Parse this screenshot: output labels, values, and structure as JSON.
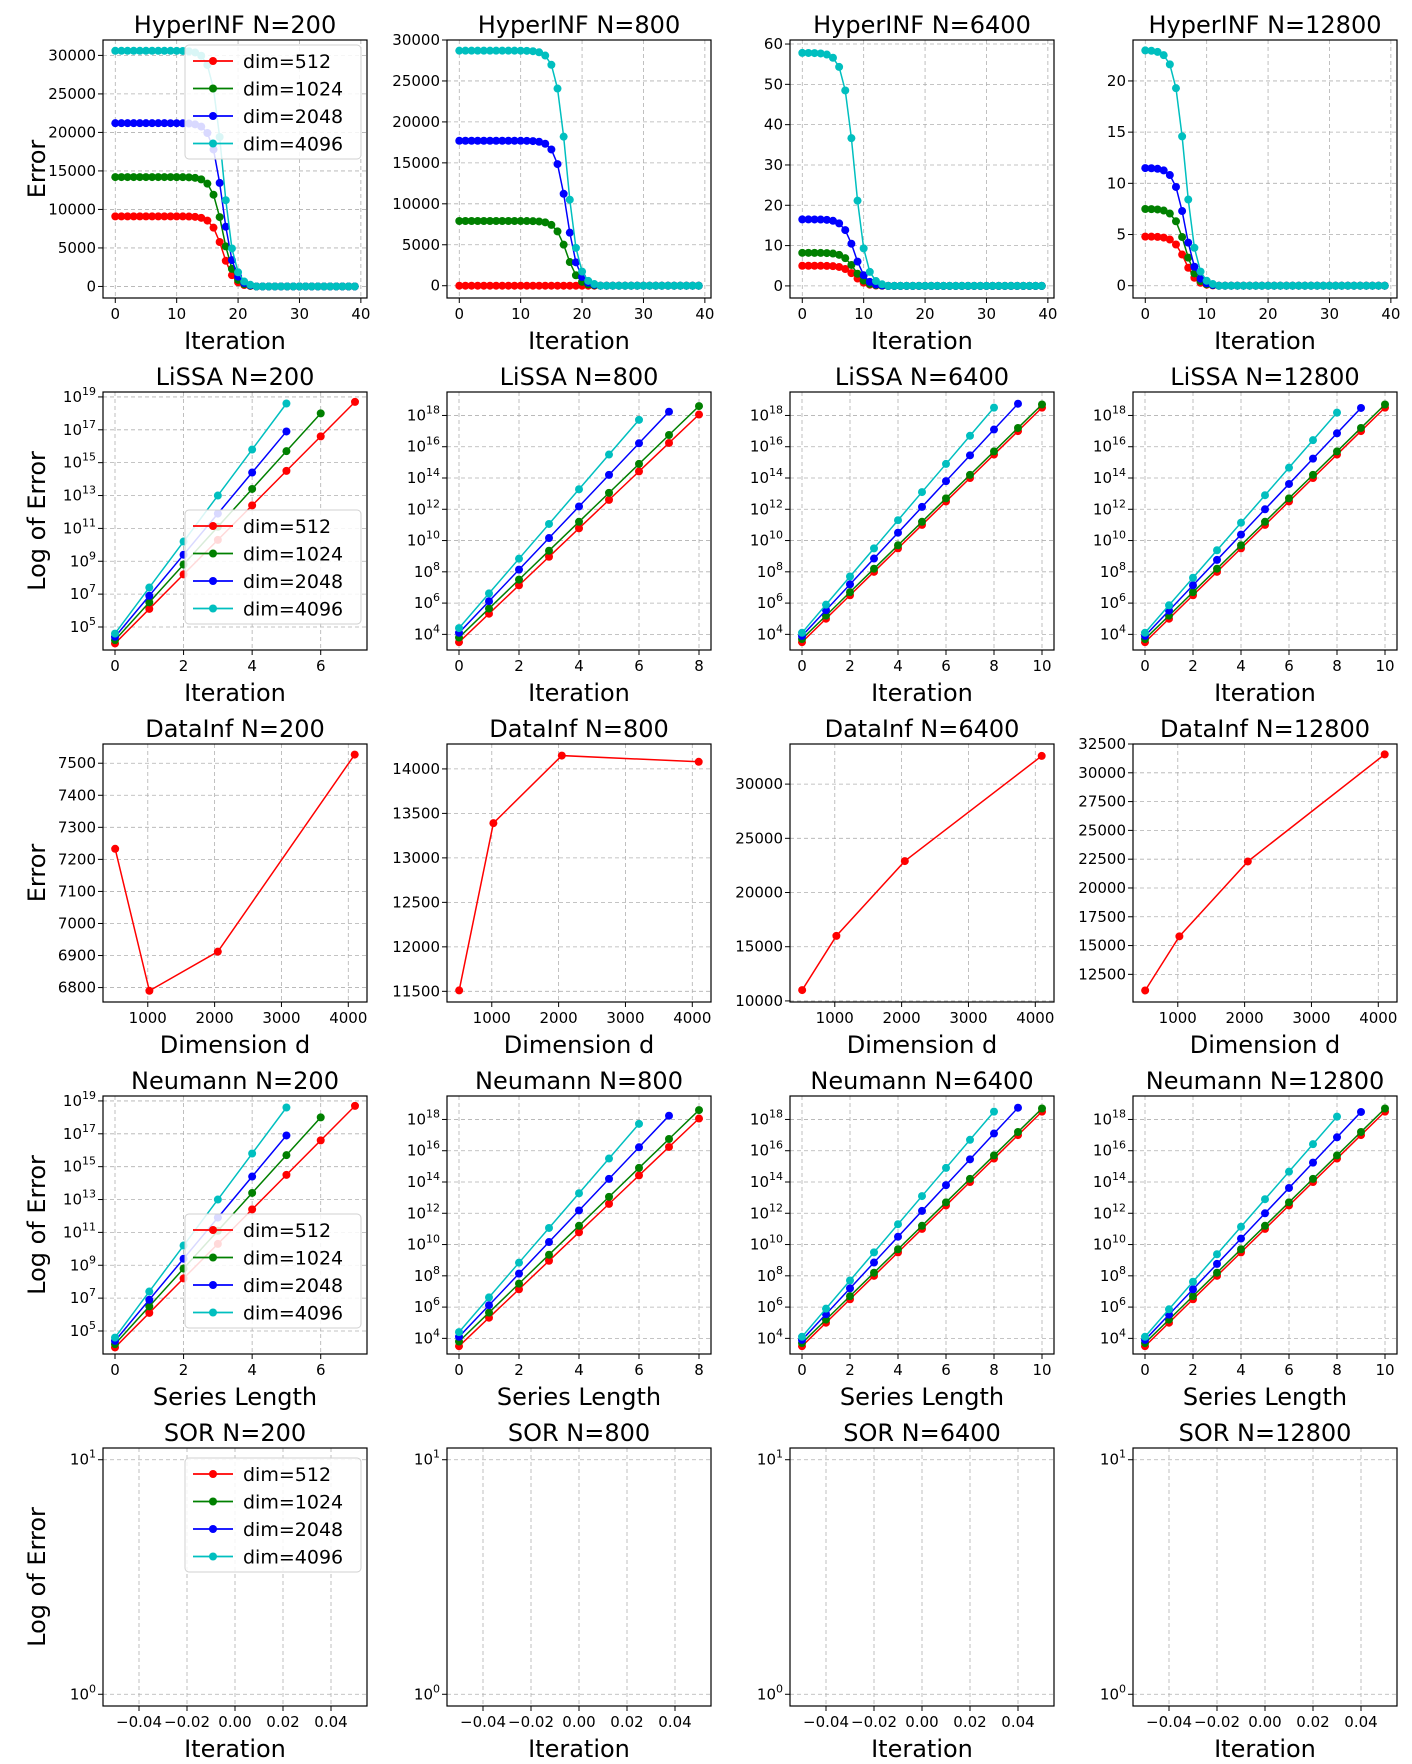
{
  "figure": {
    "legend_entries": [
      "dim=512",
      "dim=1024",
      "dim=2048",
      "dim=4096"
    ],
    "series_colors": {
      "dim=512": "#ff0000",
      "dim=1024": "#008000",
      "dim=2048": "#0000ff",
      "dim=4096": "#00bfbf"
    }
  },
  "chart_data": [
    {
      "type": "line",
      "title": "HyperINF N=200",
      "xlabel": "Iteration",
      "ylabel": "Error",
      "scale": "linear",
      "xlim": [
        -2,
        41
      ],
      "ylim": [
        -1500,
        32000
      ],
      "xticks": [
        0,
        10,
        20,
        30,
        40
      ],
      "yticks": [
        0,
        5000,
        10000,
        15000,
        20000,
        25000,
        30000
      ],
      "legend": "top-right",
      "kind": "hyper",
      "n": 40,
      "drop": 20,
      "start": {
        "dim=512": 9100,
        "dim=1024": 14200,
        "dim=2048": 21200,
        "dim=4096": 30600
      }
    },
    {
      "type": "line",
      "title": "HyperINF N=800",
      "xlabel": "Iteration",
      "ylabel": "",
      "scale": "linear",
      "xlim": [
        -2,
        41
      ],
      "ylim": [
        -1500,
        30000
      ],
      "xticks": [
        0,
        10,
        20,
        30,
        40
      ],
      "yticks": [
        0,
        5000,
        10000,
        15000,
        20000,
        25000,
        30000
      ],
      "legend": null,
      "kind": "hyper",
      "n": 40,
      "drop": 20,
      "start": {
        "dim=512": 0,
        "dim=1024": 7900,
        "dim=2048": 17700,
        "dim=4096": 28700
      }
    },
    {
      "type": "line",
      "title": "HyperINF N=6400",
      "xlabel": "Iteration",
      "ylabel": "",
      "scale": "linear",
      "xlim": [
        -2,
        41
      ],
      "ylim": [
        -3,
        61
      ],
      "xticks": [
        0,
        10,
        20,
        30,
        40
      ],
      "yticks": [
        0,
        10,
        20,
        30,
        40,
        50,
        60
      ],
      "legend": null,
      "kind": "hyper",
      "n": 40,
      "drop": 11,
      "start": {
        "dim=512": 5,
        "dim=1024": 8.2,
        "dim=2048": 16.5,
        "dim=4096": 57.8
      }
    },
    {
      "type": "line",
      "title": "HyperINF N=12800",
      "xlabel": "Iteration",
      "ylabel": "",
      "scale": "linear",
      "xlim": [
        -2,
        41
      ],
      "ylim": [
        -1.2,
        24
      ],
      "xticks": [
        0,
        10,
        20,
        30,
        40
      ],
      "yticks": [
        0,
        5,
        10,
        15,
        20
      ],
      "legend": null,
      "kind": "hyper",
      "n": 40,
      "drop": 9,
      "start": {
        "dim=512": 4.8,
        "dim=1024": 7.5,
        "dim=2048": 11.5,
        "dim=4096": 23
      }
    },
    {
      "type": "line",
      "title": "LiSSA N=200",
      "xlabel": "Iteration",
      "ylabel": "Log of Error",
      "scale": "log",
      "xlim": [
        -0.35,
        7.35
      ],
      "ylim": [
        3.6,
        19.3
      ],
      "xticks": [
        0,
        2,
        4,
        6
      ],
      "yticks": [
        5,
        7,
        9,
        11,
        13,
        15,
        17,
        19
      ],
      "legend": "center-right",
      "kind": "loglin",
      "series": {
        "dim=512": {
          "n": 8,
          "a": 4.0,
          "b": 2.1
        },
        "dim=1024": {
          "n": 7,
          "a": 4.2,
          "b": 2.3
        },
        "dim=2048": {
          "n": 6,
          "a": 4.4,
          "b": 2.5
        },
        "dim=4096": {
          "n": 6,
          "a": 4.6,
          "b": 2.8
        }
      }
    },
    {
      "type": "line",
      "title": "LiSSA N=800",
      "xlabel": "Iteration",
      "ylabel": "",
      "scale": "log",
      "xlim": [
        -0.4,
        8.4
      ],
      "ylim": [
        3,
        19.5
      ],
      "xticks": [
        0,
        2,
        4,
        6,
        8
      ],
      "yticks": [
        4,
        6,
        8,
        10,
        12,
        14,
        16,
        18
      ],
      "legend": null,
      "kind": "loglin",
      "series": {
        "dim=512": {
          "n": 9,
          "a": 3.5,
          "b": 1.82
        },
        "dim=1024": {
          "n": 9,
          "a": 3.8,
          "b": 1.85
        },
        "dim=2048": {
          "n": 8,
          "a": 4.1,
          "b": 2.02
        },
        "dim=4096": {
          "n": 7,
          "a": 4.4,
          "b": 2.22
        }
      }
    },
    {
      "type": "line",
      "title": "LiSSA N=6400",
      "xlabel": "Iteration",
      "ylabel": "",
      "scale": "log",
      "xlim": [
        -0.5,
        10.5
      ],
      "ylim": [
        3,
        19.5
      ],
      "xticks": [
        0,
        2,
        4,
        6,
        8,
        10
      ],
      "yticks": [
        4,
        6,
        8,
        10,
        12,
        14,
        16,
        18
      ],
      "legend": null,
      "kind": "loglin",
      "series": {
        "dim=512": {
          "n": 11,
          "a": 3.5,
          "b": 1.5
        },
        "dim=1024": {
          "n": 11,
          "a": 3.7,
          "b": 1.5
        },
        "dim=2048": {
          "n": 10,
          "a": 3.9,
          "b": 1.65
        },
        "dim=4096": {
          "n": 9,
          "a": 4.1,
          "b": 1.8
        }
      }
    },
    {
      "type": "line",
      "title": "LiSSA N=12800",
      "xlabel": "Iteration",
      "ylabel": "",
      "scale": "log",
      "xlim": [
        -0.5,
        10.5
      ],
      "ylim": [
        3,
        19.5
      ],
      "xticks": [
        0,
        2,
        4,
        6,
        8,
        10
      ],
      "yticks": [
        4,
        6,
        8,
        10,
        12,
        14,
        16,
        18
      ],
      "legend": null,
      "kind": "loglin",
      "series": {
        "dim=512": {
          "n": 11,
          "a": 3.5,
          "b": 1.5
        },
        "dim=1024": {
          "n": 11,
          "a": 3.7,
          "b": 1.5
        },
        "dim=2048": {
          "n": 10,
          "a": 3.9,
          "b": 1.62
        },
        "dim=4096": {
          "n": 9,
          "a": 4.1,
          "b": 1.76
        }
      }
    },
    {
      "type": "line",
      "title": "DataInf N=200",
      "xlabel": "Dimension d",
      "ylabel": "Error",
      "scale": "linear",
      "xlim": [
        330,
        4280
      ],
      "ylim": [
        6755,
        7560
      ],
      "xticks": [
        1000,
        2000,
        3000,
        4000
      ],
      "yticks": [
        6800,
        6900,
        7000,
        7100,
        7200,
        7300,
        7400,
        7500
      ],
      "legend": null,
      "kind": "points",
      "x": [
        512,
        1024,
        2048,
        4096
      ],
      "values": [
        7233,
        6790,
        6912,
        7527
      ]
    },
    {
      "type": "line",
      "title": "DataInf N=800",
      "xlabel": "Dimension d",
      "ylabel": "",
      "scale": "linear",
      "xlim": [
        330,
        4280
      ],
      "ylim": [
        11380,
        14280
      ],
      "xticks": [
        1000,
        2000,
        3000,
        4000
      ],
      "yticks": [
        11500,
        12000,
        12500,
        13000,
        13500,
        14000
      ],
      "legend": null,
      "kind": "points",
      "x": [
        512,
        1024,
        2048,
        4096
      ],
      "values": [
        11510,
        13390,
        14150,
        14080
      ]
    },
    {
      "type": "line",
      "title": "DataInf N=6400",
      "xlabel": "Dimension d",
      "ylabel": "",
      "scale": "linear",
      "xlim": [
        330,
        4280
      ],
      "ylim": [
        9900,
        33700
      ],
      "xticks": [
        1000,
        2000,
        3000,
        4000
      ],
      "yticks": [
        10000,
        15000,
        20000,
        25000,
        30000
      ],
      "legend": null,
      "kind": "points",
      "x": [
        512,
        1024,
        2048,
        4096
      ],
      "values": [
        11000,
        16000,
        22900,
        32600
      ]
    },
    {
      "type": "line",
      "title": "DataInf N=12800",
      "xlabel": "Dimension d",
      "ylabel": "",
      "scale": "linear",
      "xlim": [
        330,
        4280
      ],
      "ylim": [
        10100,
        32500
      ],
      "xticks": [
        1000,
        2000,
        3000,
        4000
      ],
      "yticks": [
        12500,
        15000,
        17500,
        20000,
        22500,
        25000,
        27500,
        30000,
        32500
      ],
      "legend": null,
      "kind": "points",
      "x": [
        512,
        1024,
        2048,
        4096
      ],
      "values": [
        11100,
        15800,
        22300,
        31600
      ]
    },
    {
      "type": "line",
      "title": "Neumann N=200",
      "xlabel": "Series Length",
      "ylabel": "Log of Error",
      "scale": "log",
      "xlim": [
        -0.35,
        7.35
      ],
      "ylim": [
        3.6,
        19.3
      ],
      "xticks": [
        0,
        2,
        4,
        6
      ],
      "yticks": [
        5,
        7,
        9,
        11,
        13,
        15,
        17,
        19
      ],
      "legend": "center-right",
      "kind": "loglin",
      "series": {
        "dim=512": {
          "n": 8,
          "a": 4.0,
          "b": 2.1
        },
        "dim=1024": {
          "n": 7,
          "a": 4.2,
          "b": 2.3
        },
        "dim=2048": {
          "n": 6,
          "a": 4.4,
          "b": 2.5
        },
        "dim=4096": {
          "n": 6,
          "a": 4.6,
          "b": 2.8
        }
      }
    },
    {
      "type": "line",
      "title": "Neumann N=800",
      "xlabel": "Series Length",
      "ylabel": "",
      "scale": "log",
      "xlim": [
        -0.4,
        8.4
      ],
      "ylim": [
        3,
        19.5
      ],
      "xticks": [
        0,
        2,
        4,
        6,
        8
      ],
      "yticks": [
        4,
        6,
        8,
        10,
        12,
        14,
        16,
        18
      ],
      "legend": null,
      "kind": "loglin",
      "series": {
        "dim=512": {
          "n": 9,
          "a": 3.5,
          "b": 1.82
        },
        "dim=1024": {
          "n": 9,
          "a": 3.8,
          "b": 1.85
        },
        "dim=2048": {
          "n": 8,
          "a": 4.1,
          "b": 2.02
        },
        "dim=4096": {
          "n": 7,
          "a": 4.4,
          "b": 2.22
        }
      }
    },
    {
      "type": "line",
      "title": "Neumann N=6400",
      "xlabel": "Series Length",
      "ylabel": "",
      "scale": "log",
      "xlim": [
        -0.5,
        10.5
      ],
      "ylim": [
        3,
        19.5
      ],
      "xticks": [
        0,
        2,
        4,
        6,
        8,
        10
      ],
      "yticks": [
        4,
        6,
        8,
        10,
        12,
        14,
        16,
        18
      ],
      "legend": null,
      "kind": "loglin",
      "series": {
        "dim=512": {
          "n": 11,
          "a": 3.5,
          "b": 1.5
        },
        "dim=1024": {
          "n": 11,
          "a": 3.7,
          "b": 1.5
        },
        "dim=2048": {
          "n": 10,
          "a": 3.9,
          "b": 1.65
        },
        "dim=4096": {
          "n": 9,
          "a": 4.1,
          "b": 1.8
        }
      }
    },
    {
      "type": "line",
      "title": "Neumann N=12800",
      "xlabel": "Series Length",
      "ylabel": "",
      "scale": "log",
      "xlim": [
        -0.5,
        10.5
      ],
      "ylim": [
        3,
        19.5
      ],
      "xticks": [
        0,
        2,
        4,
        6,
        8,
        10
      ],
      "yticks": [
        4,
        6,
        8,
        10,
        12,
        14,
        16,
        18
      ],
      "legend": null,
      "kind": "loglin",
      "series": {
        "dim=512": {
          "n": 11,
          "a": 3.5,
          "b": 1.5
        },
        "dim=1024": {
          "n": 11,
          "a": 3.7,
          "b": 1.5
        },
        "dim=2048": {
          "n": 10,
          "a": 3.9,
          "b": 1.62
        },
        "dim=4096": {
          "n": 9,
          "a": 4.1,
          "b": 1.76
        }
      }
    },
    {
      "type": "line",
      "title": "SOR N=200",
      "xlabel": "Iteration",
      "ylabel": "Log of Error",
      "scale": "log",
      "xlim": [
        -0.055,
        0.055
      ],
      "ylim": [
        -0.05,
        1.05
      ],
      "xticks": [
        -0.04,
        -0.02,
        0.0,
        0.02,
        0.04
      ],
      "xtick_labels": [
        "−0.04",
        "−0.02",
        "0.00",
        "0.02",
        "0.04"
      ],
      "yticks": [
        0,
        1
      ],
      "legend": "upper-center",
      "kind": "empty"
    },
    {
      "type": "line",
      "title": "SOR N=800",
      "xlabel": "Iteration",
      "ylabel": "",
      "scale": "log",
      "xlim": [
        -0.055,
        0.055
      ],
      "ylim": [
        -0.05,
        1.05
      ],
      "xticks": [
        -0.04,
        -0.02,
        0.0,
        0.02,
        0.04
      ],
      "xtick_labels": [
        "−0.04",
        "−0.02",
        "0.00",
        "0.02",
        "0.04"
      ],
      "yticks": [
        0,
        1
      ],
      "legend": null,
      "kind": "empty"
    },
    {
      "type": "line",
      "title": "SOR N=6400",
      "xlabel": "Iteration",
      "ylabel": "",
      "scale": "log",
      "xlim": [
        -0.055,
        0.055
      ],
      "ylim": [
        -0.05,
        1.05
      ],
      "xticks": [
        -0.04,
        -0.02,
        0.0,
        0.02,
        0.04
      ],
      "xtick_labels": [
        "−0.04",
        "−0.02",
        "0.00",
        "0.02",
        "0.04"
      ],
      "yticks": [
        0,
        1
      ],
      "legend": null,
      "kind": "empty"
    },
    {
      "type": "line",
      "title": "SOR N=12800",
      "xlabel": "Iteration",
      "ylabel": "",
      "scale": "log",
      "xlim": [
        -0.055,
        0.055
      ],
      "ylim": [
        -0.05,
        1.05
      ],
      "xticks": [
        -0.04,
        -0.02,
        0.0,
        0.02,
        0.04
      ],
      "xtick_labels": [
        "−0.04",
        "−0.02",
        "0.00",
        "0.02",
        "0.04"
      ],
      "yticks": [
        0,
        1
      ],
      "legend": null,
      "kind": "empty"
    }
  ]
}
